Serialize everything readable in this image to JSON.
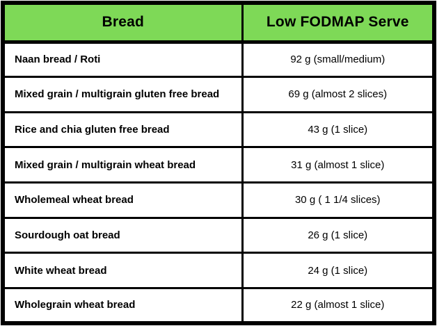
{
  "colors": {
    "header_bg": "#7ED957",
    "border": "#000000",
    "row_bg": "#FFFFFF",
    "text": "#000000"
  },
  "chart_data": {
    "type": "table",
    "columns": [
      "Bread",
      "Low FODMAP Serve"
    ],
    "rows": [
      [
        "Naan bread / Roti",
        "92 g (small/medium)"
      ],
      [
        "Mixed grain / multigrain gluten free bread",
        "69 g (almost 2 slices)"
      ],
      [
        "Rice and chia gluten free bread",
        "43 g (1 slice)"
      ],
      [
        "Mixed grain / multigrain wheat bread",
        "31 g (almost 1 slice)"
      ],
      [
        "Wholemeal wheat bread",
        "30 g ( 1 1/4 slices)"
      ],
      [
        "Sourdough oat bread",
        "26 g (1 slice)"
      ],
      [
        "White wheat bread",
        "24 g (1 slice)"
      ],
      [
        "Wholegrain wheat bread",
        "22 g (almost 1 slice)"
      ]
    ],
    "serve_values_g": [
      92,
      69,
      43,
      31,
      30,
      26,
      24,
      22
    ]
  }
}
